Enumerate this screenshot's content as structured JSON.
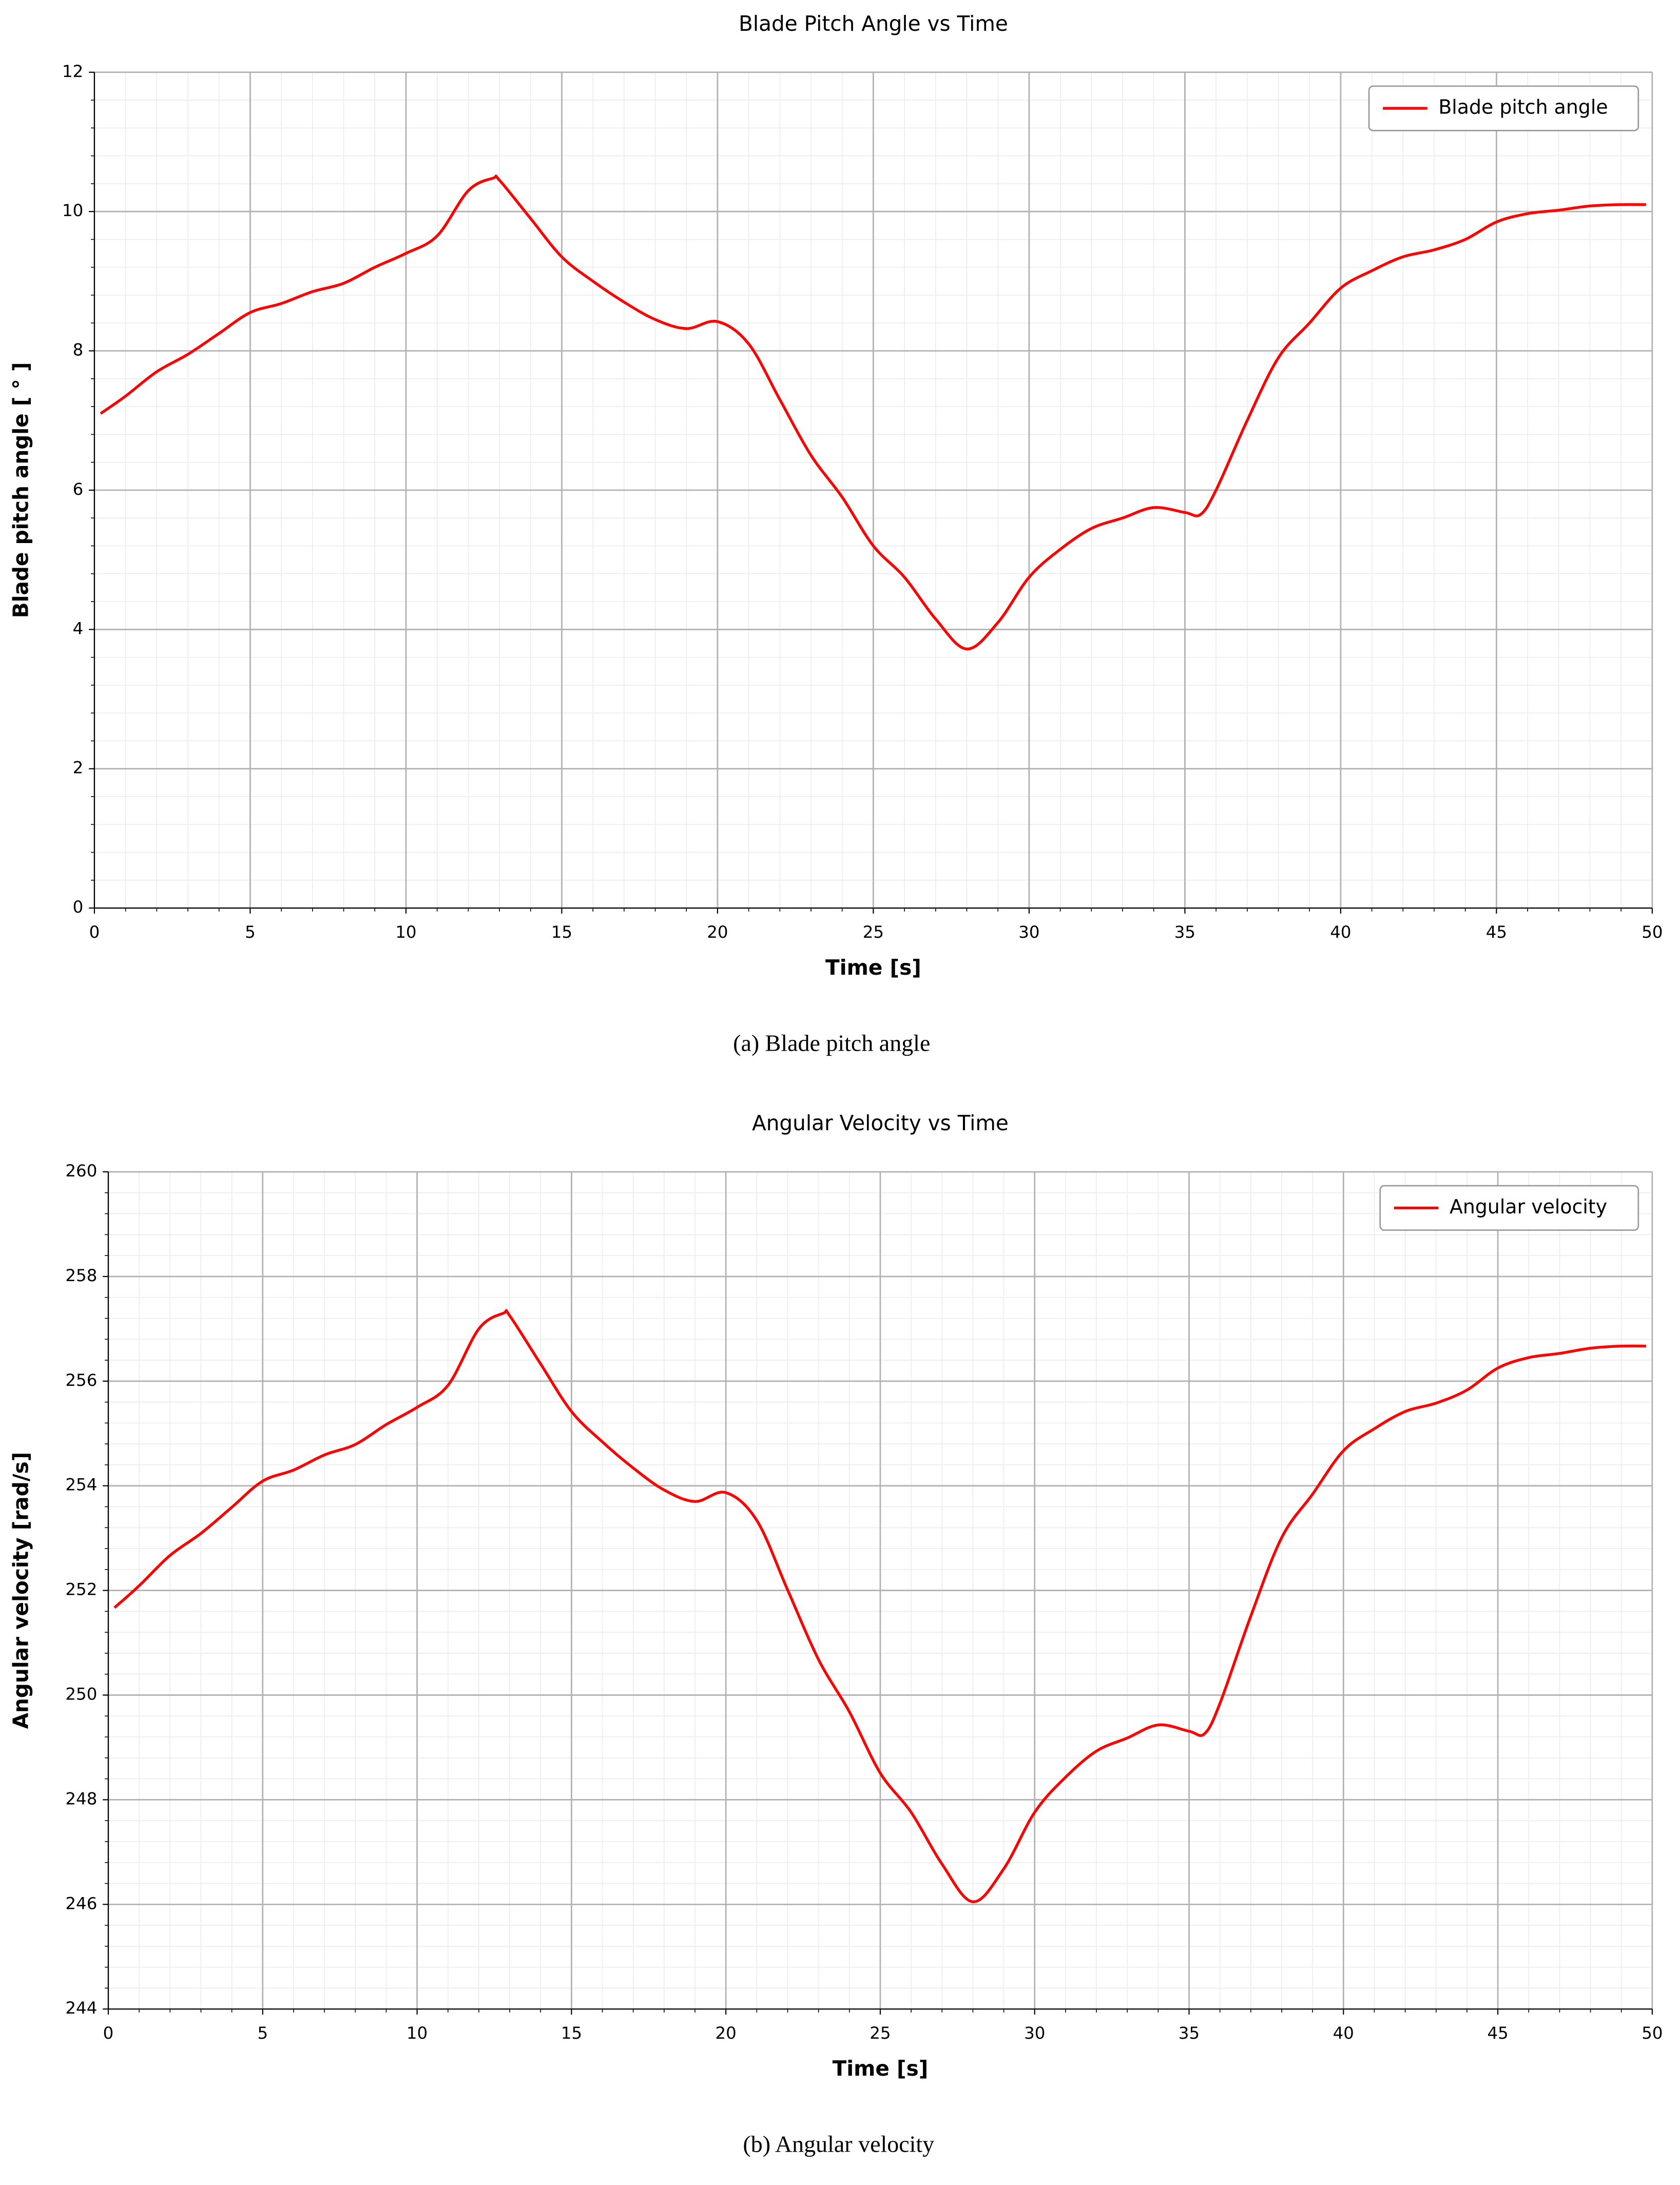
{
  "chart_data": [
    {
      "type": "line",
      "title": "Blade Pitch Angle vs Time",
      "x_label": "Time [s]",
      "y_label": "Blade pitch angle [ ° ]",
      "caption": "(a) Blade pitch angle",
      "x": [
        0.2,
        1,
        2,
        3,
        4,
        5,
        6,
        7,
        8,
        9,
        10,
        11,
        12,
        12.8,
        13,
        14,
        15,
        16,
        17,
        18,
        19,
        20,
        21,
        22,
        23,
        24,
        25,
        26,
        27,
        28,
        29,
        30,
        31,
        32,
        33,
        34,
        35,
        35.5,
        36,
        37,
        38,
        39,
        40,
        41,
        42,
        43,
        44,
        45,
        46,
        47,
        48,
        49,
        49.8
      ],
      "series": [
        {
          "name": "Blade pitch angle",
          "color": "#ff0000",
          "values": [
            7.1,
            7.35,
            7.7,
            7.95,
            8.25,
            8.55,
            8.68,
            8.85,
            8.97,
            9.2,
            9.4,
            9.65,
            10.3,
            10.48,
            10.45,
            9.9,
            9.35,
            9.0,
            8.7,
            8.45,
            8.32,
            8.42,
            8.1,
            7.3,
            6.5,
            5.9,
            5.2,
            4.75,
            4.15,
            3.72,
            4.1,
            4.75,
            5.15,
            5.45,
            5.6,
            5.75,
            5.68,
            5.65,
            6.0,
            7.0,
            7.9,
            8.4,
            8.9,
            9.15,
            9.35,
            9.45,
            9.6,
            9.85,
            9.97,
            10.02,
            10.08,
            10.1,
            10.1
          ]
        }
      ],
      "xlim": [
        0,
        50
      ],
      "xticks": [
        0,
        5,
        10,
        15,
        20,
        25,
        30,
        35,
        40,
        45,
        50
      ],
      "ylim": [
        0,
        12
      ],
      "yticks": [
        0,
        2,
        4,
        6,
        8,
        10,
        12
      ],
      "grid": true,
      "minor_grid": true,
      "legend": "upper right"
    },
    {
      "type": "line",
      "title": "Angular Velocity vs Time",
      "x_label": "Time [s]",
      "y_label": "Angular velocity [rad/s]",
      "caption": "(b) Angular velocity",
      "x": [
        0.2,
        1,
        2,
        3,
        4,
        5,
        6,
        7,
        8,
        9,
        10,
        11,
        12,
        12.8,
        13,
        14,
        15,
        16,
        17,
        18,
        19,
        20,
        21,
        22,
        23,
        24,
        25,
        26,
        27,
        28,
        29,
        30,
        31,
        32,
        33,
        34,
        35,
        35.5,
        36,
        37,
        38,
        39,
        40,
        41,
        42,
        43,
        44,
        45,
        46,
        47,
        48,
        49,
        49.8
      ],
      "series": [
        {
          "name": "Angular velocity",
          "color": "#ff0000",
          "values": [
            251.67,
            252.09,
            252.67,
            253.09,
            253.59,
            254.09,
            254.3,
            254.59,
            254.79,
            255.17,
            255.5,
            255.92,
            257.0,
            257.3,
            257.25,
            256.33,
            255.42,
            254.84,
            254.34,
            253.92,
            253.7,
            253.87,
            253.34,
            252.01,
            250.68,
            249.68,
            248.51,
            247.76,
            246.77,
            246.05,
            246.68,
            247.76,
            248.43,
            248.93,
            249.18,
            249.43,
            249.31,
            249.26,
            249.84,
            251.51,
            253.01,
            253.84,
            254.67,
            255.09,
            255.42,
            255.58,
            255.83,
            256.25,
            256.45,
            256.53,
            256.63,
            256.67,
            256.67
          ]
        }
      ],
      "xlim": [
        0,
        50
      ],
      "xticks": [
        0,
        5,
        10,
        15,
        20,
        25,
        30,
        35,
        40,
        45,
        50
      ],
      "ylim": [
        244,
        260
      ],
      "yticks": [
        244,
        246,
        248,
        250,
        252,
        254,
        256,
        258,
        260
      ],
      "grid": true,
      "minor_grid": true,
      "legend": "upper right"
    }
  ]
}
